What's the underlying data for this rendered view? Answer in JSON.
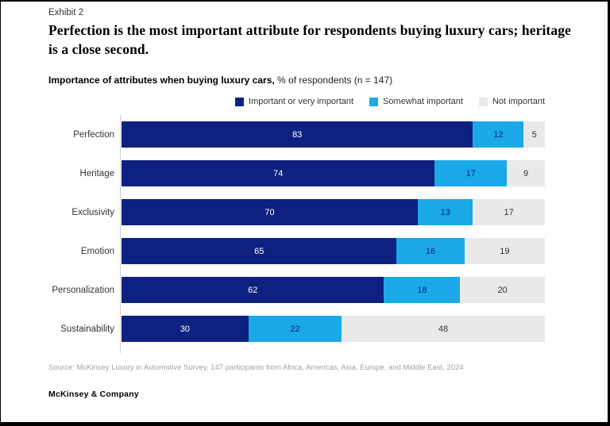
{
  "page": {
    "exhibit_label": "Exhibit 2",
    "headline": "Perfection is the most important attribute for respondents buying luxury cars; heritage is a close second.",
    "subtitle_bold": "Importance of attributes when buying luxury cars,",
    "subtitle_rest": " % of respondents (n = 147)",
    "source": "Source: McKinsey Luxury in Automotive Survey, 147 participants from Africa, Americas, Asia, Europe, and Middle East, 2024",
    "footer": "McKinsey & Company"
  },
  "colors": {
    "navy": "#0e2180",
    "cyan": "#1ba8e8",
    "gray": "#e9e9e9",
    "axis": "#cfcfcf"
  },
  "chart_data": {
    "type": "bar",
    "orientation": "horizontal",
    "stacked": true,
    "title": "Importance of attributes when buying luxury cars, % of respondents (n = 147)",
    "categories": [
      "Perfection",
      "Heritage",
      "Exclusivity",
      "Emotion",
      "Personalization",
      "Sustainability"
    ],
    "series": [
      {
        "name": "Important or very important",
        "color": "#0e2180",
        "label_color": "#ffffff",
        "values": [
          83,
          74,
          70,
          65,
          62,
          30
        ]
      },
      {
        "name": "Somewhat important",
        "color": "#1ba8e8",
        "label_color": "#0e2180",
        "values": [
          12,
          17,
          13,
          16,
          18,
          22
        ]
      },
      {
        "name": "Not important",
        "color": "#e9e9e9",
        "label_color": "#333333",
        "values": [
          5,
          9,
          17,
          19,
          20,
          48
        ]
      }
    ],
    "xlim": [
      0,
      100
    ],
    "legend_position": "top-right",
    "grid": false
  }
}
